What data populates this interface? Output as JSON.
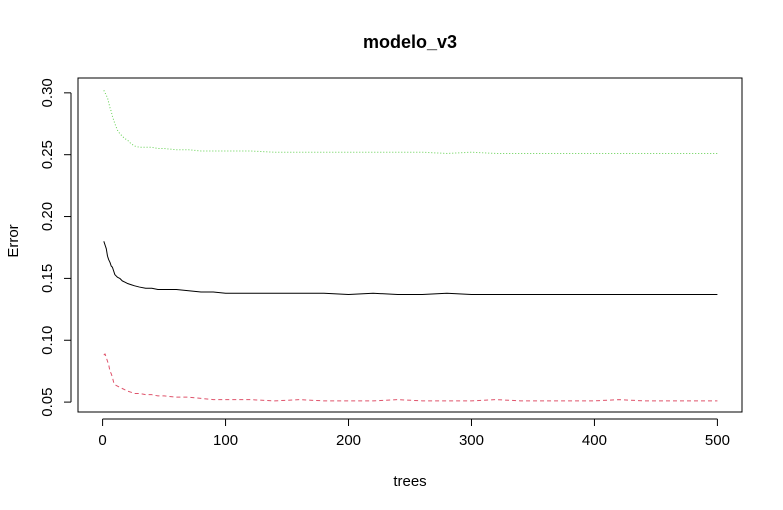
{
  "chart_data": {
    "type": "line",
    "title": "modelo_v3",
    "xlabel": "trees",
    "ylabel": "Error",
    "xlim": [
      -20,
      520
    ],
    "ylim": [
      0.042,
      0.312
    ],
    "x_ticks": [
      0,
      100,
      200,
      300,
      400,
      500
    ],
    "x_tick_labels": [
      "0",
      "100",
      "200",
      "300",
      "400",
      "500"
    ],
    "y_ticks": [
      0.05,
      0.1,
      0.15,
      0.2,
      0.25,
      0.3
    ],
    "y_tick_labels": [
      "0.05",
      "0.10",
      "0.15",
      "0.20",
      "0.25",
      "0.30"
    ],
    "grid": false,
    "legend": "none",
    "series": [
      {
        "color": "#000000",
        "dash": "solid",
        "x": [
          1,
          2,
          3,
          4,
          5,
          6,
          7,
          8,
          9,
          10,
          12,
          14,
          16,
          18,
          20,
          23,
          26,
          30,
          35,
          40,
          45,
          50,
          60,
          70,
          80,
          90,
          100,
          120,
          140,
          160,
          180,
          200,
          220,
          240,
          260,
          280,
          300,
          320,
          340,
          360,
          380,
          400,
          420,
          440,
          460,
          480,
          500
        ],
        "values": [
          0.18,
          0.177,
          0.174,
          0.168,
          0.165,
          0.163,
          0.16,
          0.159,
          0.156,
          0.153,
          0.151,
          0.15,
          0.148,
          0.147,
          0.146,
          0.145,
          0.144,
          0.143,
          0.142,
          0.142,
          0.141,
          0.141,
          0.141,
          0.14,
          0.139,
          0.139,
          0.138,
          0.138,
          0.138,
          0.138,
          0.138,
          0.137,
          0.138,
          0.137,
          0.137,
          0.138,
          0.137,
          0.137,
          0.137,
          0.137,
          0.137,
          0.137,
          0.137,
          0.137,
          0.137,
          0.137,
          0.137
        ]
      },
      {
        "color": "#DF536B",
        "dash": "dashed",
        "x": [
          1,
          2,
          3,
          4,
          5,
          6,
          7,
          8,
          9,
          10,
          12,
          14,
          16,
          18,
          20,
          23,
          26,
          30,
          35,
          40,
          45,
          50,
          60,
          70,
          80,
          90,
          100,
          120,
          140,
          160,
          180,
          200,
          220,
          240,
          260,
          280,
          300,
          320,
          340,
          360,
          380,
          400,
          420,
          440,
          460,
          480,
          500
        ],
        "values": [
          0.088,
          0.089,
          0.086,
          0.083,
          0.08,
          0.075,
          0.073,
          0.07,
          0.066,
          0.064,
          0.063,
          0.062,
          0.061,
          0.06,
          0.059,
          0.058,
          0.057,
          0.057,
          0.056,
          0.056,
          0.055,
          0.055,
          0.054,
          0.054,
          0.053,
          0.052,
          0.052,
          0.052,
          0.051,
          0.052,
          0.051,
          0.051,
          0.051,
          0.052,
          0.051,
          0.051,
          0.051,
          0.052,
          0.051,
          0.051,
          0.051,
          0.051,
          0.052,
          0.051,
          0.051,
          0.051,
          0.051
        ]
      },
      {
        "color": "#61D04F",
        "dash": "dotted",
        "x": [
          1,
          2,
          3,
          4,
          5,
          6,
          7,
          8,
          9,
          10,
          12,
          14,
          16,
          18,
          20,
          23,
          26,
          30,
          35,
          40,
          45,
          50,
          60,
          70,
          80,
          90,
          100,
          120,
          140,
          160,
          180,
          200,
          220,
          240,
          260,
          280,
          300,
          320,
          340,
          360,
          380,
          400,
          420,
          440,
          460,
          480,
          500
        ],
        "values": [
          0.302,
          0.3,
          0.298,
          0.296,
          0.292,
          0.288,
          0.285,
          0.281,
          0.278,
          0.275,
          0.27,
          0.267,
          0.265,
          0.263,
          0.262,
          0.259,
          0.257,
          0.256,
          0.256,
          0.256,
          0.255,
          0.255,
          0.254,
          0.254,
          0.253,
          0.253,
          0.253,
          0.253,
          0.252,
          0.252,
          0.252,
          0.252,
          0.252,
          0.252,
          0.252,
          0.251,
          0.252,
          0.251,
          0.251,
          0.251,
          0.251,
          0.251,
          0.251,
          0.251,
          0.251,
          0.251,
          0.251
        ]
      }
    ]
  }
}
